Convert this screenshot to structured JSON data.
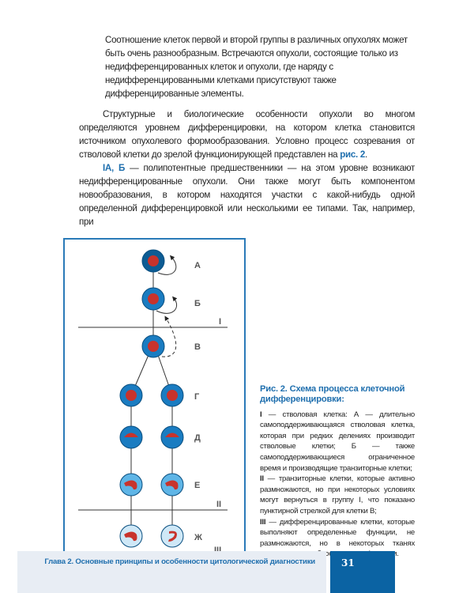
{
  "quote": "Соотношение клеток первой и второй группы в различных опухолях может быть очень разнообразным. Встречаются опухоли, состоящие только из недифференцированных клеток и опухоли, где наряду с недифференцированными клетками присутствуют также дифференцированные элементы.",
  "paragraph1": {
    "text": "Структурные и биологические особенности опухоли во многом определяются уровнем дифференцировки, на котором клетка становится источником опухолевого формообразования. Условно процесс созревания от стволовой клетки до зрелой функционирующей представлен на ",
    "link": "рис. 2",
    "end": "."
  },
  "paragraph2": {
    "lead": "IА, Б",
    "text": " — полипотентные предшественники — на этом уровне возникают недифференцированные опухоли. Они также могут быть компонентом новообразования, в котором находятся участки с какой-нибудь одной определенной дифференцировкой или несколькими ее типами. Так, например, при"
  },
  "figure": {
    "cell_labels": [
      "А",
      "Б",
      "В",
      "Г",
      "Д",
      "Е",
      "Ж"
    ],
    "group_labels": [
      "I",
      "II",
      "III"
    ],
    "colors": {
      "border": "#2a7ab8",
      "stem": "#0d5c94",
      "transit": "#1a7cc1",
      "light": "#5fb5e6",
      "mature": "#cfe8f7",
      "nucleus": "#c8332c"
    }
  },
  "caption": {
    "title": "Рис. 2. Схема процесса клеточной дифференцировки:",
    "items": [
      {
        "mark": "I",
        "text": " — стволовая клетка: А — длительно самоподдерживающаяся стволовая клетка, которая при редких делениях производит стволовые клетки; Б — также самоподдерживающиеся ограниченное время и производящие транзиторные клетки;"
      },
      {
        "mark": "II",
        "text": " — транзиторные клетки, которые активно размножаются, но при некоторых условиях могут вернуться в группу I, что показано пунктирной стрелкой для клетки В;"
      },
      {
        "mark": "III",
        "text": " — дифференцированные клетки, которые выполняют определенные функции, не размножаются, но в некоторых тканях сохраняют способность к пролиферации."
      }
    ]
  },
  "footer": {
    "chapter": "Глава 2. Основные принципы и особенности цитологической диагностики",
    "page": "31"
  }
}
